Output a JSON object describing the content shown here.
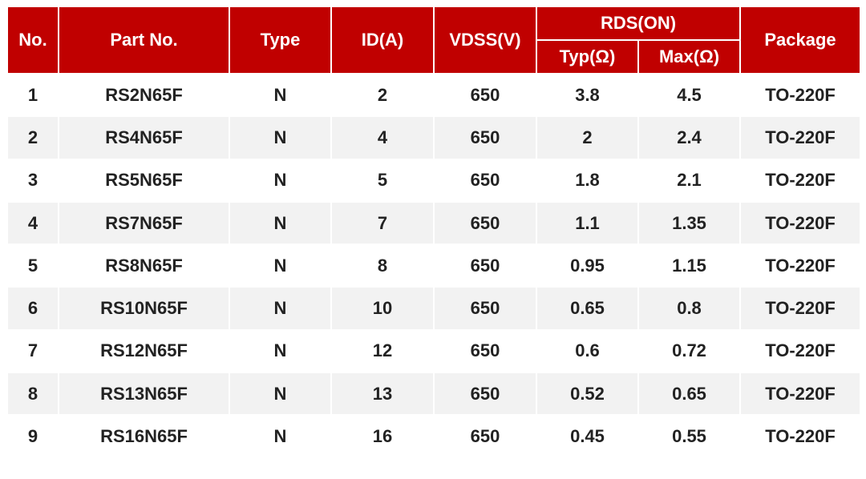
{
  "table": {
    "header": [
      "No.",
      "Part No.",
      "Type",
      "ID(A)",
      "VDSS(V)",
      "RDS(ON)",
      "Package"
    ],
    "subheader": [
      "Typ(Ω)",
      "Max(Ω)"
    ],
    "rows": [
      [
        "1",
        "RS2N65F",
        "N",
        "2",
        "650",
        "3.8",
        "4.5",
        "TO-220F"
      ],
      [
        "2",
        "RS4N65F",
        "N",
        "4",
        "650",
        "2",
        "2.4",
        "TO-220F"
      ],
      [
        "3",
        "RS5N65F",
        "N",
        "5",
        "650",
        "1.8",
        "2.1",
        "TO-220F"
      ],
      [
        "4",
        "RS7N65F",
        "N",
        "7",
        "650",
        "1.1",
        "1.35",
        "TO-220F"
      ],
      [
        "5",
        "RS8N65F",
        "N",
        "8",
        "650",
        "0.95",
        "1.15",
        "TO-220F"
      ],
      [
        "6",
        "RS10N65F",
        "N",
        "10",
        "650",
        "0.65",
        "0.8",
        "TO-220F"
      ],
      [
        "7",
        "RS12N65F",
        "N",
        "12",
        "650",
        "0.6",
        "0.72",
        "TO-220F"
      ],
      [
        "8",
        "RS13N65F",
        "N",
        "13",
        "650",
        "0.52",
        "0.65",
        "TO-220F"
      ],
      [
        "9",
        "RS16N65F",
        "N",
        "16",
        "650",
        "0.45",
        "0.55",
        "TO-220F"
      ]
    ]
  }
}
